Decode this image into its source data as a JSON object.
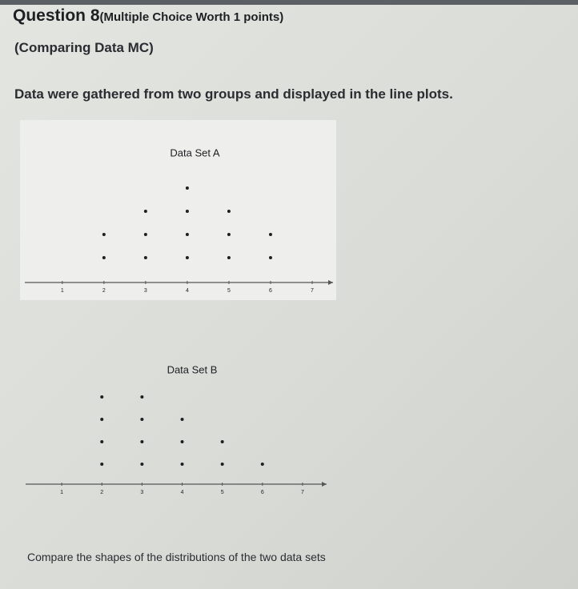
{
  "header": {
    "question": "Question 8",
    "worth": "(Multiple Choice Worth 1 points)",
    "topic": "(Comparing Data MC)"
  },
  "prompt": "Data were gathered from two groups and displayed in the line plots.",
  "chart_data": [
    {
      "type": "dot",
      "title": "Data Set A",
      "x": [
        1,
        2,
        3,
        4,
        5,
        6,
        7
      ],
      "values": [
        0,
        2,
        3,
        4,
        3,
        2,
        0
      ],
      "xlim": [
        0.1,
        7.5
      ],
      "xticks": [
        1,
        2,
        3,
        4,
        5,
        6,
        7
      ],
      "color": "#1e1f22"
    },
    {
      "type": "dot",
      "title": "Data Set B",
      "x": [
        1,
        2,
        3,
        4,
        5,
        6,
        7
      ],
      "values": [
        0,
        4,
        4,
        3,
        2,
        1,
        0
      ],
      "xlim": [
        0.1,
        7.6
      ],
      "xticks": [
        1,
        2,
        3,
        4,
        5,
        6,
        7
      ],
      "color": "#1e1f22"
    }
  ],
  "question": "Compare the shapes of the distributions of the two data sets"
}
